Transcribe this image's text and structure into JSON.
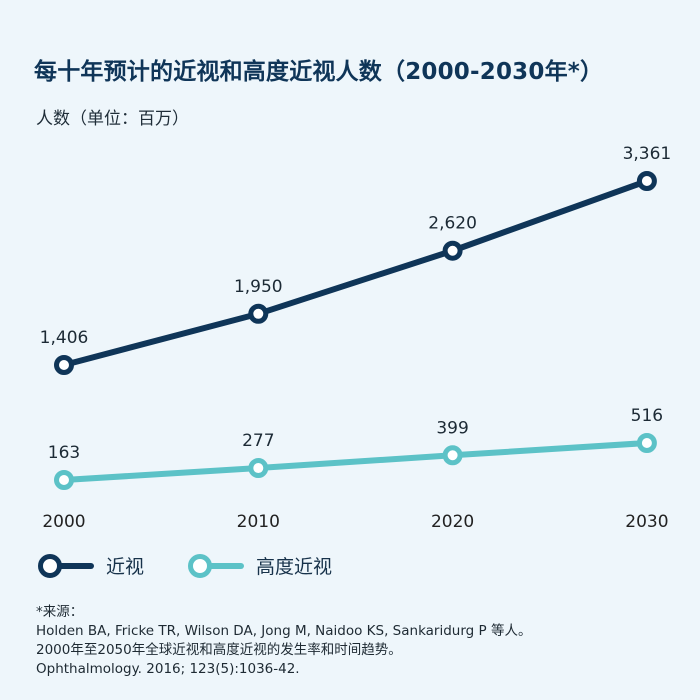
{
  "title": "每十年预计的近视和高度近视人数（2000-2030年*）",
  "unit_label": "人数（单位：百万）",
  "colors": {
    "myopia": "#0f3558",
    "high_myopia": "#5cc2c7",
    "background": "#eef6fb"
  },
  "chart_data": {
    "type": "line",
    "title": "每十年预计的近视和高度近视人数（2000-2030年*）",
    "ylabel": "人数（单位：百万）",
    "xlabel": "",
    "x": [
      "2000",
      "2010",
      "2020",
      "2030"
    ],
    "grid": false,
    "legend_position": "bottom-left",
    "series": [
      {
        "name": "近视",
        "values": [
          1406,
          1950,
          2620,
          3361
        ],
        "labels": [
          "1,406",
          "1,950",
          "2,620",
          "3,361"
        ]
      },
      {
        "name": "高度近视",
        "values": [
          163,
          277,
          399,
          516
        ],
        "labels": [
          "163",
          "277",
          "399",
          "516"
        ]
      }
    ]
  },
  "legend": {
    "myopia": "近视",
    "high_myopia": "高度近视"
  },
  "source": {
    "heading": "*来源：",
    "line1": "Holden BA, Fricke TR, Wilson DA, Jong M, Naidoo KS, Sankaridurg P 等人。",
    "line2": "2000年至2050年全球近视和高度近视的发生率和时间趋势。",
    "line3": "Ophthalmology. 2016; 123(5):1036-42."
  }
}
